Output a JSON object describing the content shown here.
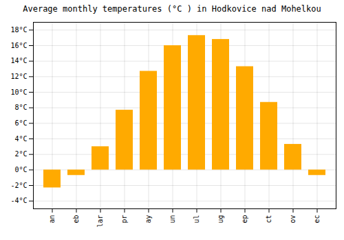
{
  "chart_data": {
    "type": "bar",
    "title": "Average monthly temperatures (°C ) in Hodkovice nad Mohelkou",
    "categories": [
      "an",
      "eb",
      "lar",
      "pr",
      "ay",
      "un",
      "ul",
      "ug",
      "ep",
      "ct",
      "ov",
      "ec"
    ],
    "values": [
      -2.3,
      -0.7,
      3.0,
      7.7,
      12.7,
      16.0,
      17.3,
      16.8,
      13.3,
      8.7,
      3.3,
      -0.7
    ],
    "color": "#FFAA00",
    "ylim": [
      -5,
      19
    ],
    "yticks": [
      {
        "value": -4,
        "label": "-4°C"
      },
      {
        "value": -2,
        "label": "-2°C"
      },
      {
        "value": 0,
        "label": "0°C"
      },
      {
        "value": 2,
        "label": "2°C"
      },
      {
        "value": 4,
        "label": "4°C"
      },
      {
        "value": 6,
        "label": "6°C"
      },
      {
        "value": 8,
        "label": "8°C"
      },
      {
        "value": 10,
        "label": "10°C"
      },
      {
        "value": 12,
        "label": "12°C"
      },
      {
        "value": 14,
        "label": "14°C"
      },
      {
        "value": 16,
        "label": "16°C"
      },
      {
        "value": 18,
        "label": "18°C"
      }
    ],
    "grid": true
  }
}
